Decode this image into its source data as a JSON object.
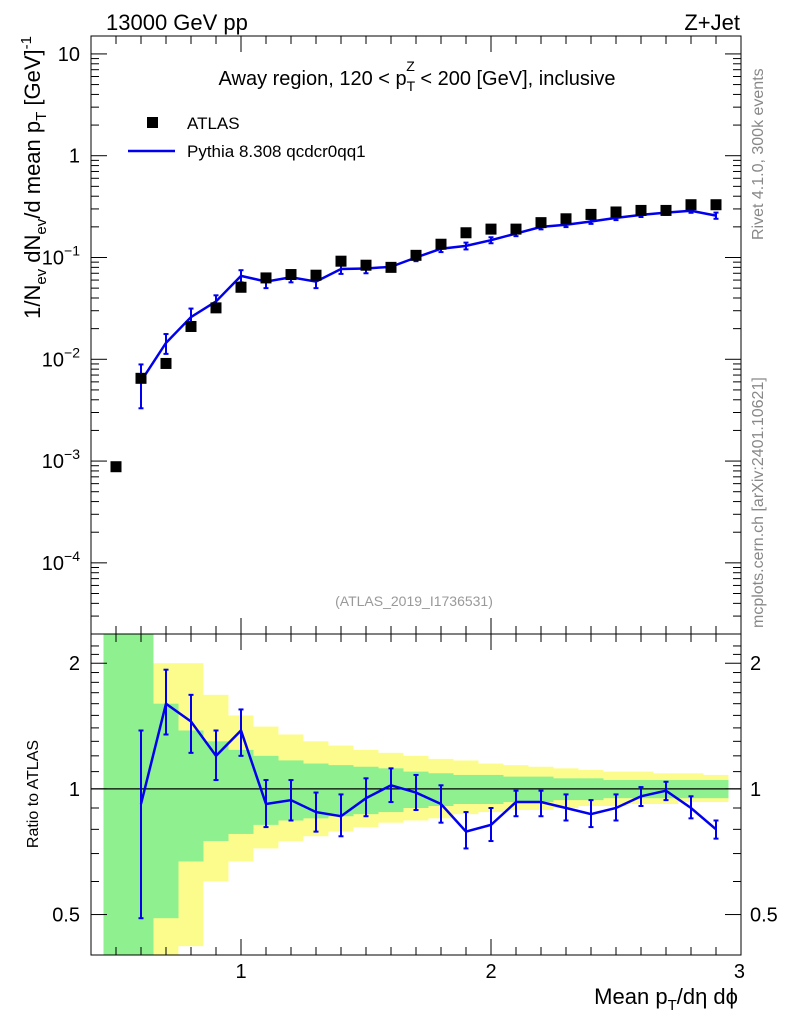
{
  "header": {
    "left": "13000 GeV pp",
    "right": "Z+Jet"
  },
  "side_labels": {
    "rivet": "Rivet 4.1.0,  300k events",
    "mcplots": "mcplots.cern.ch [arXiv:2401.10621]"
  },
  "colors": {
    "mc": "#0000ee",
    "data": "#000000",
    "band_inner": "#8ef08e",
    "band_outer": "#fcfc8c"
  },
  "chart_data": [
    {
      "type": "scatter",
      "title_parts": {
        "pre": "Away region, 120 < p",
        "sub": "T",
        "sup": "Z",
        "post": " < 200 [GeV], inclusive"
      },
      "ylabel_parts": {
        "a": "1/N",
        "a_sub": "ev",
        "b": " dN",
        "b_sub": "ev",
        "c": "/d mean p",
        "c_sub": "T",
        "d": " [GeV]",
        "d_sup": "-1"
      },
      "yscale": "log",
      "ylim": [
        2e-05,
        15
      ],
      "xlim": [
        0.4,
        3.0
      ],
      "y_ticks": [
        {
          "value": 10,
          "label": "10"
        },
        {
          "value": 1,
          "label": "1"
        },
        {
          "value": 0.1,
          "base": "10",
          "exp": "−1"
        },
        {
          "value": 0.01,
          "base": "10",
          "exp": "−2"
        },
        {
          "value": 0.001,
          "base": "10",
          "exp": "−3"
        },
        {
          "value": 0.0001,
          "base": "10",
          "exp": "−4"
        }
      ],
      "legend": {
        "position": "top-left",
        "entries": [
          {
            "label": "ATLAS",
            "marker": "square"
          },
          {
            "label": "Pythia 8.308 qcdcr0qq1",
            "marker": "line"
          }
        ]
      },
      "watermark": "(ATLAS_2019_I1736531)",
      "series": [
        {
          "name": "ATLAS",
          "x": [
            0.5,
            0.6,
            0.7,
            0.8,
            0.9,
            1.0,
            1.1,
            1.2,
            1.3,
            1.4,
            1.5,
            1.6,
            1.7,
            1.8,
            1.9,
            2.0,
            2.1,
            2.2,
            2.3,
            2.4,
            2.5,
            2.6,
            2.7,
            2.8,
            2.9
          ],
          "y": [
            0.00088,
            0.0065,
            0.0091,
            0.021,
            0.032,
            0.051,
            0.063,
            0.068,
            0.067,
            0.092,
            0.084,
            0.08,
            0.105,
            0.135,
            0.175,
            0.19,
            0.19,
            0.22,
            0.24,
            0.265,
            0.28,
            0.29,
            0.29,
            0.33,
            0.33
          ]
        },
        {
          "name": "Pythia 8.308 qcdcr0qq1",
          "x": [
            0.6,
            0.7,
            0.8,
            0.9,
            1.0,
            1.1,
            1.2,
            1.3,
            1.4,
            1.5,
            1.6,
            1.7,
            1.8,
            1.9,
            2.0,
            2.1,
            2.2,
            2.3,
            2.4,
            2.5,
            2.6,
            2.7,
            2.8,
            2.9
          ],
          "y": [
            0.0061,
            0.0145,
            0.026,
            0.037,
            0.066,
            0.058,
            0.064,
            0.058,
            0.077,
            0.078,
            0.081,
            0.1,
            0.122,
            0.13,
            0.148,
            0.172,
            0.2,
            0.21,
            0.226,
            0.245,
            0.262,
            0.276,
            0.288,
            0.258
          ],
          "yerr": [
            0.0028,
            0.0032,
            0.0055,
            0.0055,
            0.009,
            0.008,
            0.007,
            0.008,
            0.008,
            0.008,
            0.007,
            0.008,
            0.009,
            0.01,
            0.01,
            0.01,
            0.011,
            0.011,
            0.012,
            0.012,
            0.012,
            0.013,
            0.013,
            0.018
          ]
        }
      ]
    },
    {
      "type": "line",
      "ylabel": "Ratio to ATLAS",
      "xlabel_parts": {
        "pre": "Mean p",
        "sub": "T",
        "post": "/dη dϕ"
      },
      "yscale": "log",
      "ylim": [
        0.4,
        2.35
      ],
      "xlim": [
        0.4,
        3.0
      ],
      "x_ticks": [
        {
          "value": 1,
          "label": "1"
        },
        {
          "value": 2,
          "label": "2"
        },
        {
          "value": 3,
          "label": "3"
        }
      ],
      "y_ticks": [
        {
          "value": 0.5,
          "label": "0.5"
        },
        {
          "value": 1,
          "label": "1"
        },
        {
          "value": 2,
          "label": "2"
        }
      ],
      "reference_line": 1,
      "bands": {
        "edges": [
          0.45,
          0.55,
          0.65,
          0.75,
          0.85,
          0.95,
          1.05,
          1.15,
          1.25,
          1.35,
          1.45,
          1.55,
          1.65,
          1.75,
          1.85,
          1.95,
          2.05,
          2.15,
          2.25,
          2.35,
          2.45,
          2.55,
          2.65,
          2.75,
          2.85,
          2.95
        ],
        "inner_lo": [
          0.4,
          0.4,
          0.49,
          0.67,
          0.75,
          0.78,
          0.82,
          0.84,
          0.85,
          0.86,
          0.87,
          0.88,
          0.9,
          0.91,
          0.92,
          0.92,
          0.93,
          0.93,
          0.94,
          0.94,
          0.95,
          0.95,
          0.95,
          0.95,
          0.95
        ],
        "inner_hi": [
          2.35,
          2.35,
          1.6,
          1.38,
          1.3,
          1.24,
          1.2,
          1.17,
          1.15,
          1.14,
          1.13,
          1.12,
          1.1,
          1.09,
          1.08,
          1.08,
          1.07,
          1.07,
          1.06,
          1.06,
          1.05,
          1.05,
          1.05,
          1.05,
          1.05
        ],
        "outer_lo": [
          0.4,
          0.55,
          0.4,
          0.42,
          0.6,
          0.67,
          0.72,
          0.75,
          0.77,
          0.79,
          0.81,
          0.83,
          0.84,
          0.85,
          0.87,
          0.88,
          0.89,
          0.89,
          0.9,
          0.91,
          0.91,
          0.92,
          0.92,
          0.93,
          0.93
        ],
        "outer_hi": [
          2.35,
          2.35,
          2.0,
          2.0,
          1.68,
          1.5,
          1.41,
          1.35,
          1.3,
          1.27,
          1.24,
          1.22,
          1.2,
          1.18,
          1.17,
          1.15,
          1.14,
          1.13,
          1.12,
          1.11,
          1.1,
          1.1,
          1.09,
          1.09,
          1.08
        ]
      },
      "series": [
        {
          "name": "Pythia 8.308 qcdcr0qq1 / ATLAS",
          "x": [
            0.6,
            0.7,
            0.8,
            0.9,
            1.0,
            1.1,
            1.2,
            1.3,
            1.4,
            1.5,
            1.6,
            1.7,
            1.8,
            1.9,
            2.0,
            2.1,
            2.2,
            2.3,
            2.4,
            2.5,
            2.6,
            2.7,
            2.8,
            2.9
          ],
          "y": [
            0.92,
            1.6,
            1.45,
            1.2,
            1.38,
            0.92,
            0.94,
            0.88,
            0.86,
            0.95,
            1.02,
            0.98,
            0.92,
            0.79,
            0.82,
            0.93,
            0.93,
            0.9,
            0.87,
            0.9,
            0.96,
            0.99,
            0.9,
            0.8
          ],
          "lo": [
            0.49,
            1.35,
            1.22,
            1.05,
            1.2,
            0.81,
            0.84,
            0.79,
            0.77,
            0.86,
            0.93,
            0.89,
            0.83,
            0.72,
            0.75,
            0.86,
            0.86,
            0.84,
            0.81,
            0.84,
            0.91,
            0.94,
            0.85,
            0.76
          ],
          "hi": [
            1.38,
            1.93,
            1.68,
            1.38,
            1.55,
            1.05,
            1.05,
            0.98,
            0.97,
            1.06,
            1.12,
            1.08,
            1.02,
            0.88,
            0.9,
            0.99,
            0.99,
            0.97,
            0.94,
            0.97,
            1.01,
            1.04,
            0.96,
            0.84
          ]
        }
      ]
    }
  ]
}
